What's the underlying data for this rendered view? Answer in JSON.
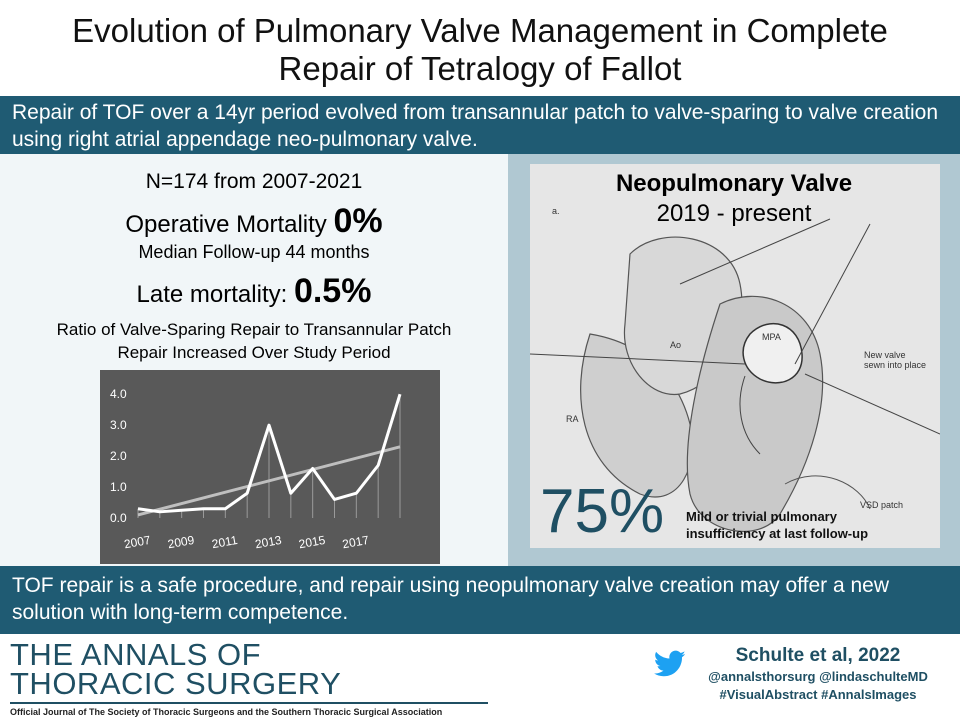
{
  "title_line1": "Evolution of Pulmonary Valve Management in Complete",
  "title_line2": "Repair of Tetralogy of Fallot",
  "summary_top": "Repair of TOF over a 14yr period evolved from transannular patch to valve-sparing to valve creation using right atrial appendage neo-pulmonary valve.",
  "stats": {
    "cohort": "N=174 from 2007-2021",
    "op_mortality_label": "Operative Mortality ",
    "op_mortality_value": "0%",
    "followup": "Median Follow-up 44 months",
    "late_mortality_label": "Late mortality: ",
    "late_mortality_value": "0.5%",
    "ratio_line1": "Ratio of Valve-Sparing Repair to Transannular Patch",
    "ratio_line2": "Repair Increased Over Study Period"
  },
  "chart_data": {
    "type": "line",
    "x": [
      2007,
      2008,
      2009,
      2010,
      2011,
      2012,
      2013,
      2014,
      2015,
      2016,
      2017,
      2018,
      2019
    ],
    "series": [
      {
        "values": [
          0.3,
          0.2,
          0.25,
          0.3,
          0.3,
          0.8,
          3.0,
          0.8,
          1.6,
          0.6,
          0.8,
          1.7,
          4.0
        ],
        "color": "#ffffff"
      }
    ],
    "trendline": {
      "from": [
        2007,
        0.1
      ],
      "to": [
        2019,
        2.3
      ],
      "color": "#bfbfbf"
    },
    "y_ticks": [
      "0.0",
      "1.0",
      "2.0",
      "3.0",
      "4.0"
    ],
    "x_ticks": [
      "2007",
      "2009",
      "2011",
      "2013",
      "2015",
      "2017"
    ],
    "ylim": [
      0,
      4.2
    ],
    "grid": false
  },
  "neo_panel": {
    "title": "Neopulmonary Valve",
    "subtitle": "2019 - present",
    "percent": "75%",
    "caption_line1": "Mild or trivial pulmonary",
    "caption_line2": "insufficiency at last follow-up",
    "labels": {
      "a": "a.",
      "ao": "Ao",
      "mpa": "MPA",
      "ra": "RA",
      "new_valve_1": "New valve",
      "new_valve_2": "sewn into place",
      "vsd": "VSD patch"
    }
  },
  "summary_bottom": "TOF repair is a safe procedure, and repair using neopulmonary valve creation may offer a new solution with long-term competence.",
  "footer": {
    "journal_line1": "THE ANNALS OF",
    "journal_line2": "THORACIC SURGERY",
    "tagline": "Official Journal of The Society of Thoracic Surgeons and the Southern Thoracic Surgical Association",
    "citation": "Schulte et al, 2022",
    "handles": "@annalsthorsurg @lindaschulteMD",
    "hashtags": "#VisualAbstract #AnnalsImages"
  },
  "colors": {
    "brand": "#1f5b73",
    "panel": "#b0c8d2",
    "chart_bg": "#595959"
  },
  "icons": {
    "social": "twitter-bird-icon"
  }
}
